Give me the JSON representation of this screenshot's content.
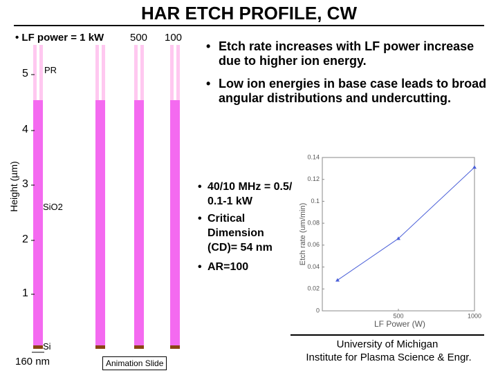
{
  "title": "HAR ETCH PROFILE, CW",
  "profile": {
    "power_labels": [
      "LF power = 1 kW",
      "500",
      "100"
    ],
    "axis_label": "Height (µm)",
    "height_ticks": [
      "5",
      "4",
      "3",
      "2",
      "1"
    ],
    "pr_label": "PR",
    "oxide_label": "SiO2",
    "si_label": "Si",
    "scale_label": "160 nm",
    "animation_label": "Animation Slide"
  },
  "bullets": [
    "Etch rate increases with LF power increase due to higher ion energy.",
    "Low ion energies in base case leads to broad angular distributions and undercutting."
  ],
  "conditions": [
    "40/10 MHz = 0.5/ 0.1-1 kW",
    "Critical Dimension (CD)= 54 nm",
    "AR=100"
  ],
  "chart_data": {
    "type": "line",
    "x_label": "LF Power (W)",
    "y_label": "Etch rate (um/min)",
    "x": [
      100,
      500,
      1000
    ],
    "xlim": [
      0,
      1000
    ],
    "xticks": [
      500,
      1000
    ],
    "ylim": [
      0,
      0.14
    ],
    "yticks": [
      0,
      0.02,
      0.04,
      0.06,
      0.08,
      0.1,
      0.12,
      0.14
    ],
    "series": [
      {
        "values": [
          0.028,
          0.066,
          0.131
        ],
        "color": "#4a5fd8"
      }
    ]
  },
  "footer": [
    "University of Michigan",
    "Institute for Plasma Science & Engr."
  ]
}
